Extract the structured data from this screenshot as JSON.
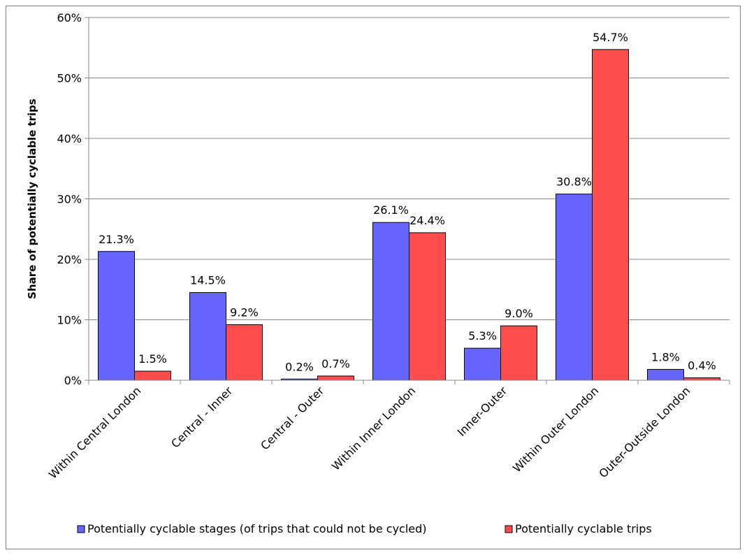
{
  "chart_data": {
    "type": "bar",
    "title": "",
    "xlabel": "",
    "ylabel": "Share of potentially cyclable trips",
    "ylim": [
      0,
      60
    ],
    "yticks": [
      0,
      10,
      20,
      30,
      40,
      50,
      60
    ],
    "ytick_labels": [
      "0%",
      "10%",
      "20%",
      "30%",
      "40%",
      "50%",
      "60%"
    ],
    "categories": [
      "Within Central London",
      "Central - Inner",
      "Central - Outer",
      "Within Inner London",
      "Inner-Outer",
      "Within Outer London",
      "Outer-Outside London"
    ],
    "series": [
      {
        "name": "Potentially cyclable stages (of trips that could not be cycled)",
        "color": "#6666ff",
        "values": [
          21.3,
          14.5,
          0.2,
          26.1,
          5.3,
          30.8,
          1.8
        ],
        "labels": [
          "21.3%",
          "14.5%",
          "0.2%",
          "26.1%",
          "5.3%",
          "30.8%",
          "1.8%"
        ]
      },
      {
        "name": "Potentially cyclable trips",
        "color": "#ff4d4d",
        "values": [
          1.5,
          9.2,
          0.7,
          24.4,
          9.0,
          54.7,
          0.4
        ],
        "labels": [
          "1.5%",
          "9.2%",
          "0.7%",
          "24.4%",
          "9.0%",
          "54.7%",
          "0.4%"
        ]
      }
    ],
    "grid": true,
    "legend_position": "bottom"
  }
}
